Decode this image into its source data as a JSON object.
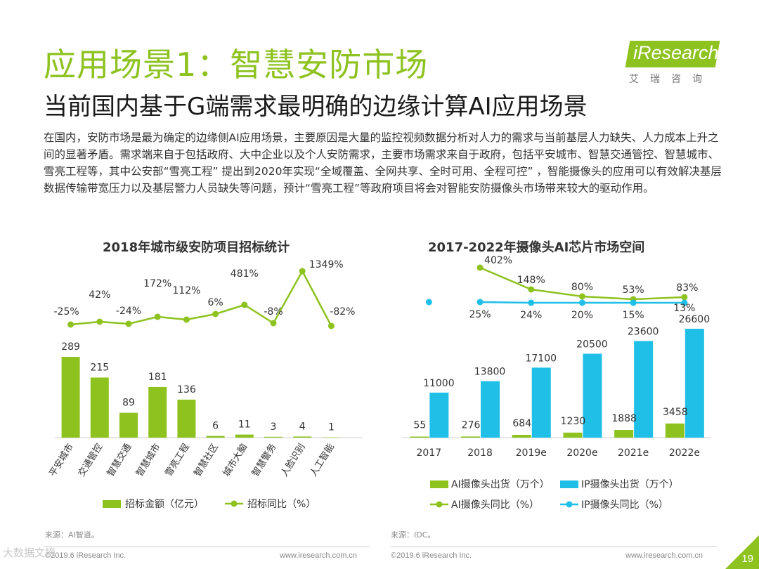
{
  "header": {
    "title": "应用场景1：智慧安防市场",
    "subtitle": "当前国内基于G端需求最明确的边缘计算AI应用场景",
    "logo_text": "iResearch",
    "logo_subtext": "艾瑞咨询"
  },
  "body_text": "在国内，安防市场是最为确定的边缘侧AI应用场景，主要原因是大量的监控视频数据分析对人力的需求与当前基层人力缺失、人力成本上升之间的显著矛盾。需求端来自于包括政府、大中企业以及个人安防需求，主要市场需求来自于政府，包括平安城市、智慧交通管控、智慧城市、雪亮工程等，其中公安部“雪亮工程” 提出到2020年实现“全域覆盖、全网共享、全时可用、全程可控” ，智能摄像头的应用可以有效解决基层数据传输带宽压力以及基层警力人员缺失等问题，预计“雪亮工程”等政府项目将会对智能安防摄像头市场带来较大的驱动作用。",
  "colors": {
    "green": "#8dc21f",
    "blue": "#1fbfe8",
    "text": "#333333"
  },
  "chart_data": [
    {
      "type": "bar",
      "title": "2018年城市级安防项目招标统计",
      "categories": [
        "平安城市",
        "交通管控",
        "智慧交通",
        "智慧城市",
        "雪亮工程",
        "智慧社区",
        "城市大脑",
        "智慧警务",
        "人脸识别",
        "人工智能"
      ],
      "series": [
        {
          "name": "招标金额（亿元）",
          "type": "bar",
          "values": [
            289,
            215,
            89,
            181,
            136,
            6,
            11,
            3,
            4,
            1
          ]
        },
        {
          "name": "招标同比（%）",
          "type": "line",
          "values": [
            -25,
            42,
            -24,
            172,
            112,
            6,
            481,
            -8,
            1349,
            -82
          ],
          "labels": [
            "-25%",
            "42%",
            "-24%",
            "172%",
            "112%",
            "6%",
            "481%",
            "-8%",
            "1349%",
            "-82%"
          ]
        }
      ],
      "legend": [
        "招标金额（亿元）",
        "招标同比（%）"
      ],
      "source": "来源：AI智道。"
    },
    {
      "type": "bar",
      "title": "2017-2022年摄像头AI芯片市场空间",
      "categories": [
        "2017",
        "2018",
        "2019e",
        "2020e",
        "2021e",
        "2022e"
      ],
      "series": [
        {
          "name": "AI摄像头出货（万个）",
          "type": "bar",
          "values": [
            55,
            276,
            684,
            1230,
            1888,
            3458
          ]
        },
        {
          "name": "IP摄像头出货（万个）",
          "type": "bar",
          "values": [
            11000,
            13800,
            17100,
            20500,
            23600,
            26600
          ]
        },
        {
          "name": "AI摄像头同比（%）",
          "type": "line",
          "values": [
            null,
            402,
            148,
            80,
            53,
            83
          ],
          "labels": [
            "",
            "402%",
            "148%",
            "80%",
            "53%",
            "83%"
          ]
        },
        {
          "name": "IP摄像头同比（%）",
          "type": "line",
          "values": [
            null,
            25,
            24,
            20,
            15,
            13
          ],
          "labels": [
            "",
            "25%",
            "24%",
            "20%",
            "15%",
            "13%"
          ]
        }
      ],
      "legend": [
        "AI摄像头出货（万个）",
        "IP摄像头出货（万个）",
        "AI摄像头同比（%）",
        "IP摄像头同比（%）"
      ],
      "source": "来源：IDC。"
    }
  ],
  "footer": {
    "left_copyright": "©2019.6 iResearch Inc.",
    "left_url": "www.iresearch.com.cn",
    "right_copyright": "©2019.6 iResearch Inc.",
    "right_url": "www.iresearch.com.cn",
    "page_number": "19",
    "watermark": "大数据文摘"
  }
}
